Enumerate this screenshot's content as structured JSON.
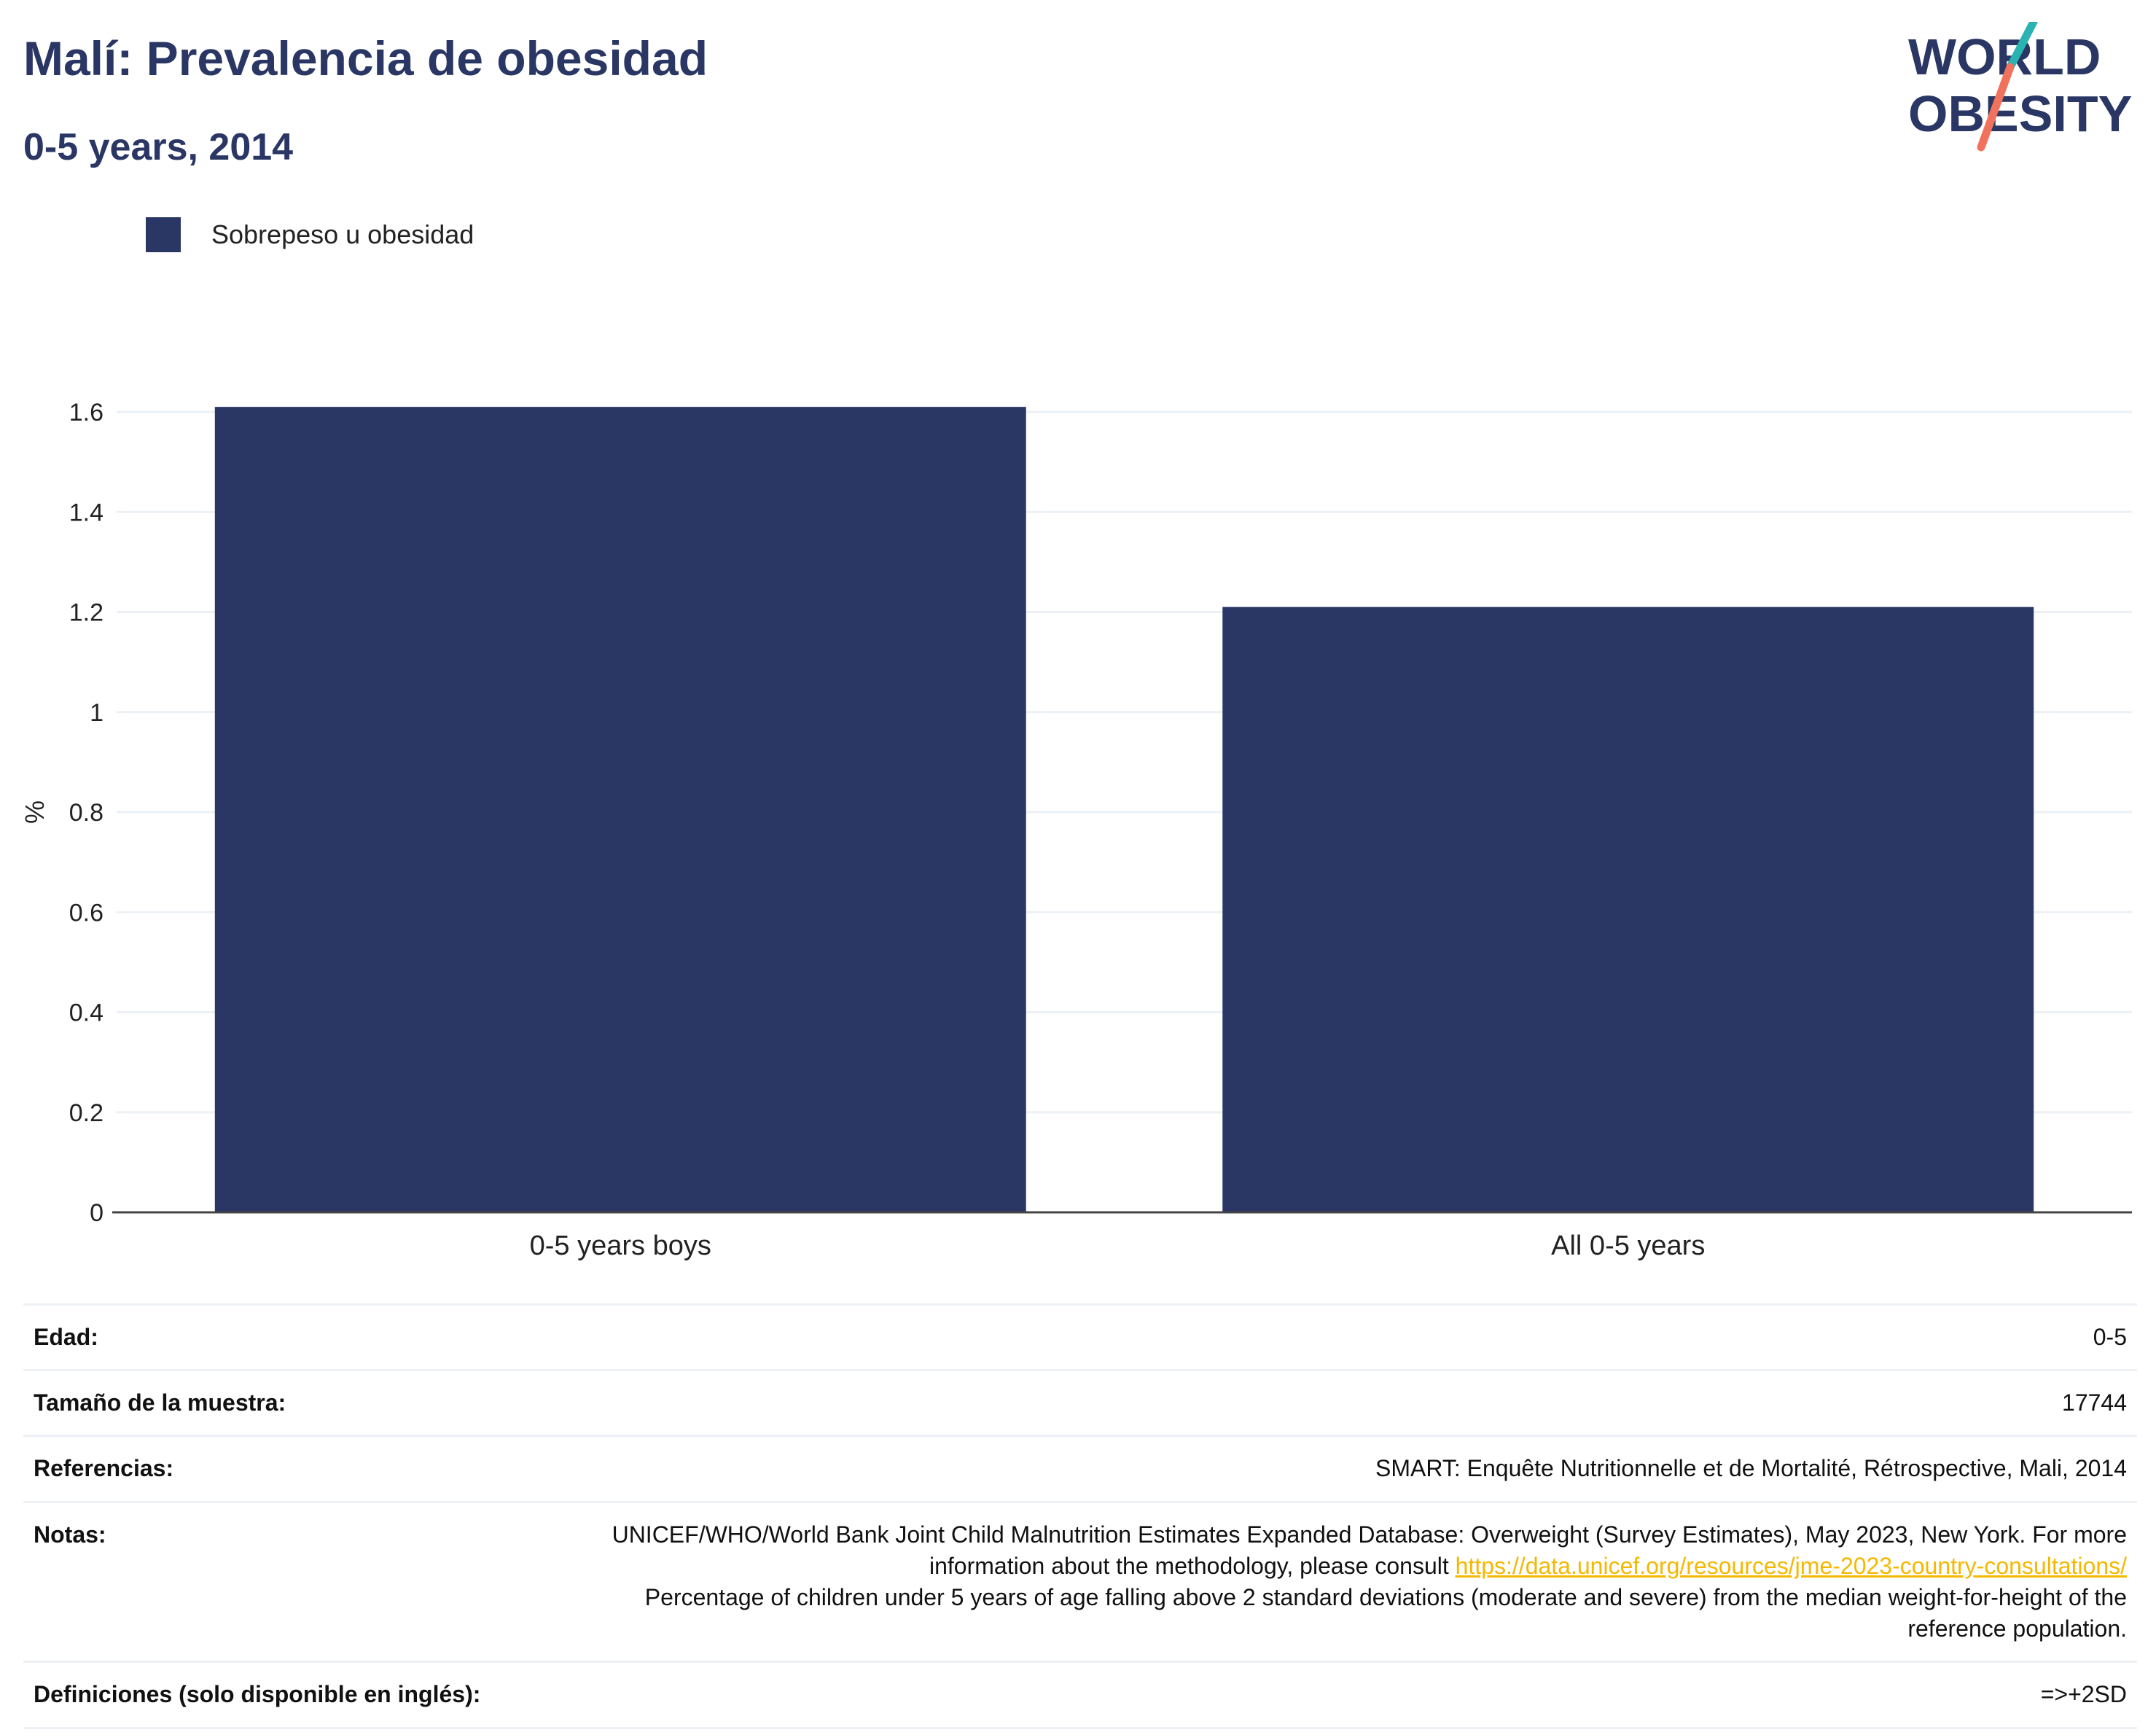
{
  "header": {
    "title": "Malí: Prevalencia de obesidad",
    "subtitle": "0-5 years, 2014"
  },
  "logo": {
    "line1": "WORLD",
    "line2": "OBESITY",
    "colors": {
      "navy": "#2a3663",
      "teal": "#2ab3b1",
      "coral": "#f0725c"
    }
  },
  "legend": {
    "label": "Sobrepeso u obesidad",
    "color": "#2a3663"
  },
  "chart_data": {
    "type": "bar",
    "categories": [
      "0-5 years boys",
      "All 0-5 years"
    ],
    "series": [
      {
        "name": "Sobrepeso u obesidad",
        "values": [
          1.61,
          1.21
        ],
        "color": "#2a3663"
      }
    ],
    "ylabel": "%",
    "xlabel": "",
    "ylim": [
      0,
      1.6
    ],
    "yticks": [
      "0",
      "0.2",
      "0.4",
      "0.6",
      "0.8",
      "1",
      "1.2",
      "1.4",
      "1.6"
    ],
    "grid": true,
    "legend_position": "top-left"
  },
  "info": {
    "edad_label": "Edad:",
    "edad_value": "0-5",
    "muestra_label": "Tamaño de la muestra:",
    "muestra_value": "17744",
    "referencias_label": "Referencias:",
    "referencias_value": "SMART: Enquête Nutritionnelle et de Mortalité, Rétrospective, Mali, 2014",
    "notas_label": "Notas:",
    "notas_text1": "UNICEF/WHO/World Bank Joint Child Malnutrition Estimates Expanded Database: Overweight (Survey Estimates), May 2023, New York. For more information about the methodology, please consult",
    "notas_link": "https://data.unicef.org/resources/jme-2023-country-consultations/",
    "notas_text2": "Percentage of children under 5 years of age falling above 2 standard deviations (moderate and severe) from the median weight-for-height of the reference population.",
    "definiciones_label": "Definiciones (solo disponible en inglés):",
    "definiciones_value": "=>+2SD"
  }
}
